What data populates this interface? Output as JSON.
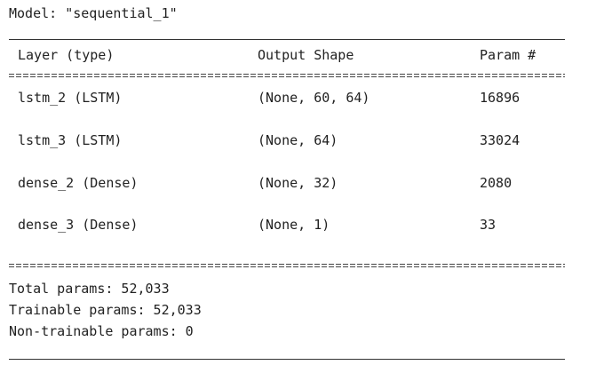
{
  "model_line": "Model: \"sequential_1\"",
  "headers": {
    "layer": "Layer (type)",
    "shape": "Output Shape",
    "param": "Param #"
  },
  "rows": [
    {
      "layer": "lstm_2 (LSTM)",
      "shape": "(None, 60, 64)",
      "param": "16896"
    },
    {
      "layer": "lstm_3 (LSTM)",
      "shape": "(None, 64)",
      "param": "33024"
    },
    {
      "layer": "dense_2 (Dense)",
      "shape": "(None, 32)",
      "param": "2080"
    },
    {
      "layer": "dense_3 (Dense)",
      "shape": "(None, 1)",
      "param": "33"
    }
  ],
  "summary": {
    "total": "Total params: 52,033",
    "trainable": "Trainable params: 52,033",
    "non_trainable": "Non-trainable params: 0"
  }
}
